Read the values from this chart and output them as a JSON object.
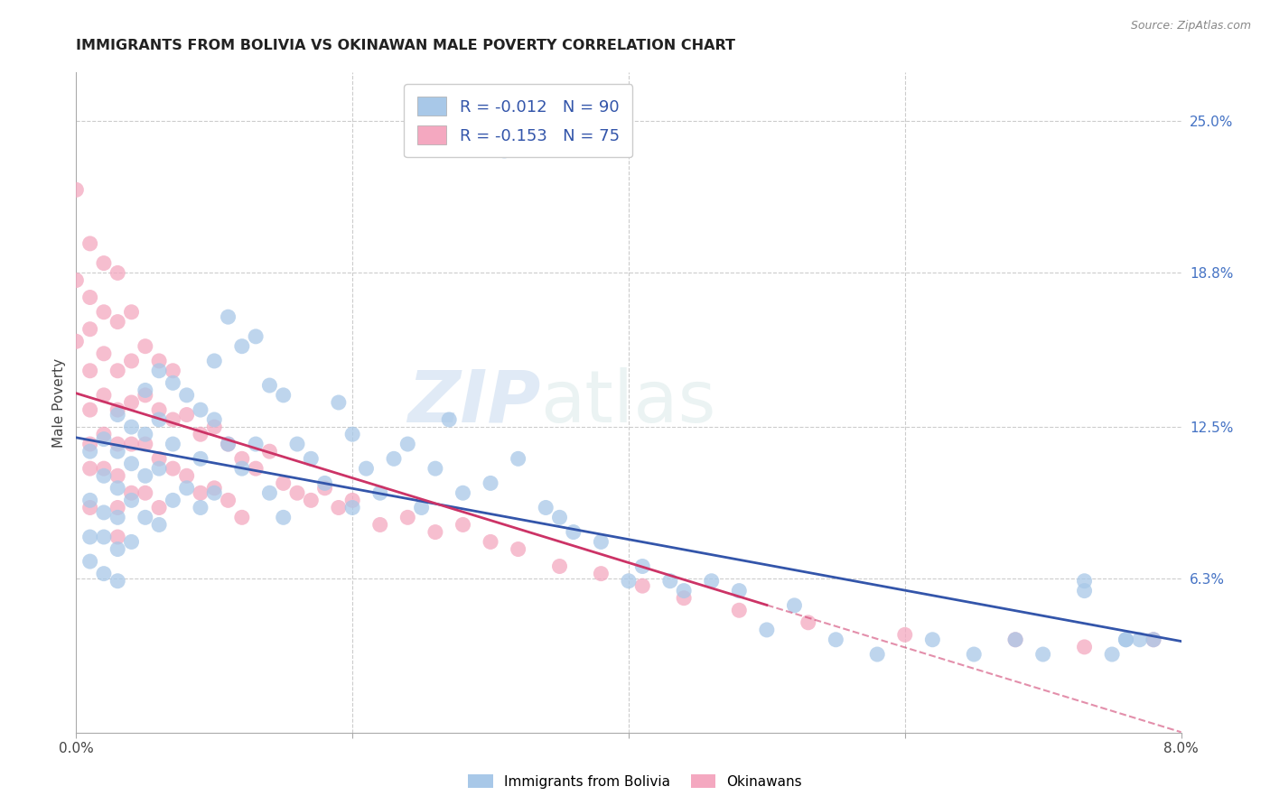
{
  "title": "IMMIGRANTS FROM BOLIVIA VS OKINAWAN MALE POVERTY CORRELATION CHART",
  "source": "Source: ZipAtlas.com",
  "ylabel": "Male Poverty",
  "right_yticks": [
    "25.0%",
    "18.8%",
    "12.5%",
    "6.3%"
  ],
  "right_ytick_vals": [
    0.25,
    0.188,
    0.125,
    0.063
  ],
  "xlim": [
    0.0,
    0.08
  ],
  "ylim": [
    0.0,
    0.27
  ],
  "watermark_zip": "ZIP",
  "watermark_atlas": "atlas",
  "legend_r_bolivia": "-0.012",
  "legend_n_bolivia": "90",
  "legend_r_okinawa": "-0.153",
  "legend_n_okinawa": "75",
  "blue_color": "#a8c8e8",
  "pink_color": "#f4a8c0",
  "line_blue": "#3355aa",
  "line_pink": "#cc3366",
  "bolivia_x": [
    0.001,
    0.001,
    0.001,
    0.001,
    0.002,
    0.002,
    0.002,
    0.002,
    0.002,
    0.003,
    0.003,
    0.003,
    0.003,
    0.003,
    0.003,
    0.004,
    0.004,
    0.004,
    0.004,
    0.005,
    0.005,
    0.005,
    0.005,
    0.006,
    0.006,
    0.006,
    0.006,
    0.007,
    0.007,
    0.007,
    0.008,
    0.008,
    0.009,
    0.009,
    0.009,
    0.01,
    0.01,
    0.01,
    0.011,
    0.011,
    0.012,
    0.012,
    0.013,
    0.013,
    0.014,
    0.014,
    0.015,
    0.015,
    0.016,
    0.017,
    0.018,
    0.019,
    0.02,
    0.02,
    0.021,
    0.022,
    0.023,
    0.024,
    0.025,
    0.026,
    0.027,
    0.028,
    0.03,
    0.031,
    0.032,
    0.034,
    0.035,
    0.036,
    0.038,
    0.04,
    0.041,
    0.043,
    0.044,
    0.046,
    0.048,
    0.05,
    0.052,
    0.055,
    0.058,
    0.062,
    0.065,
    0.068,
    0.07,
    0.073,
    0.073,
    0.075,
    0.076,
    0.076,
    0.077,
    0.078
  ],
  "bolivia_y": [
    0.115,
    0.095,
    0.08,
    0.07,
    0.12,
    0.105,
    0.09,
    0.08,
    0.065,
    0.13,
    0.115,
    0.1,
    0.088,
    0.075,
    0.062,
    0.125,
    0.11,
    0.095,
    0.078,
    0.14,
    0.122,
    0.105,
    0.088,
    0.148,
    0.128,
    0.108,
    0.085,
    0.143,
    0.118,
    0.095,
    0.138,
    0.1,
    0.132,
    0.112,
    0.092,
    0.152,
    0.128,
    0.098,
    0.17,
    0.118,
    0.158,
    0.108,
    0.162,
    0.118,
    0.142,
    0.098,
    0.138,
    0.088,
    0.118,
    0.112,
    0.102,
    0.135,
    0.092,
    0.122,
    0.108,
    0.098,
    0.112,
    0.118,
    0.092,
    0.108,
    0.128,
    0.098,
    0.102,
    0.238,
    0.112,
    0.092,
    0.088,
    0.082,
    0.078,
    0.062,
    0.068,
    0.062,
    0.058,
    0.062,
    0.058,
    0.042,
    0.052,
    0.038,
    0.032,
    0.038,
    0.032,
    0.038,
    0.032,
    0.062,
    0.058,
    0.032,
    0.038,
    0.038,
    0.038,
    0.038
  ],
  "okinawa_x": [
    0.0,
    0.0,
    0.0,
    0.001,
    0.001,
    0.001,
    0.001,
    0.001,
    0.001,
    0.001,
    0.001,
    0.002,
    0.002,
    0.002,
    0.002,
    0.002,
    0.002,
    0.003,
    0.003,
    0.003,
    0.003,
    0.003,
    0.003,
    0.003,
    0.003,
    0.004,
    0.004,
    0.004,
    0.004,
    0.004,
    0.005,
    0.005,
    0.005,
    0.005,
    0.006,
    0.006,
    0.006,
    0.006,
    0.007,
    0.007,
    0.007,
    0.008,
    0.008,
    0.009,
    0.009,
    0.01,
    0.01,
    0.011,
    0.011,
    0.012,
    0.012,
    0.013,
    0.014,
    0.015,
    0.016,
    0.017,
    0.018,
    0.019,
    0.02,
    0.022,
    0.024,
    0.026,
    0.028,
    0.03,
    0.032,
    0.035,
    0.038,
    0.041,
    0.044,
    0.048,
    0.053,
    0.06,
    0.068,
    0.073,
    0.078
  ],
  "okinawa_y": [
    0.222,
    0.185,
    0.16,
    0.2,
    0.178,
    0.165,
    0.148,
    0.132,
    0.118,
    0.108,
    0.092,
    0.192,
    0.172,
    0.155,
    0.138,
    0.122,
    0.108,
    0.188,
    0.168,
    0.148,
    0.132,
    0.118,
    0.105,
    0.092,
    0.08,
    0.172,
    0.152,
    0.135,
    0.118,
    0.098,
    0.158,
    0.138,
    0.118,
    0.098,
    0.152,
    0.132,
    0.112,
    0.092,
    0.148,
    0.128,
    0.108,
    0.13,
    0.105,
    0.122,
    0.098,
    0.125,
    0.1,
    0.118,
    0.095,
    0.112,
    0.088,
    0.108,
    0.115,
    0.102,
    0.098,
    0.095,
    0.1,
    0.092,
    0.095,
    0.085,
    0.088,
    0.082,
    0.085,
    0.078,
    0.075,
    0.068,
    0.065,
    0.06,
    0.055,
    0.05,
    0.045,
    0.04,
    0.038,
    0.035,
    0.038
  ]
}
